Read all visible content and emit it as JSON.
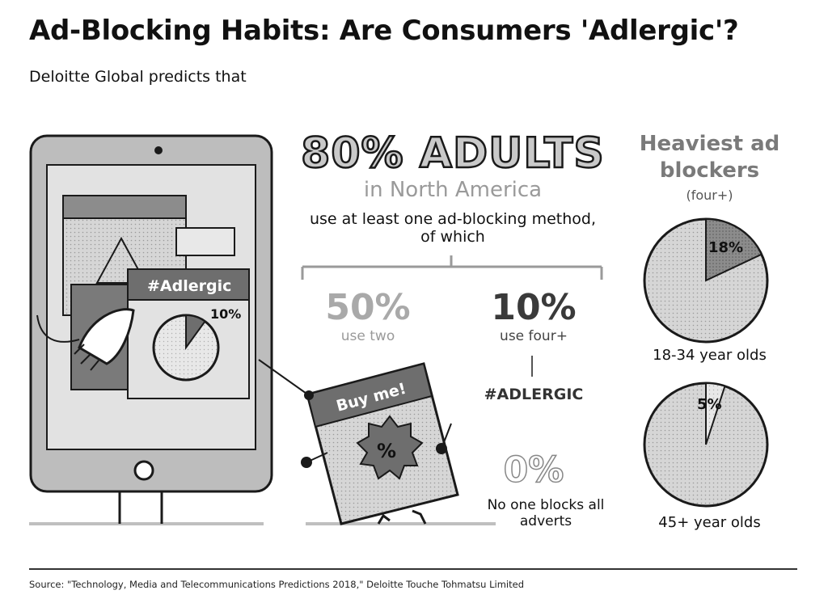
{
  "title": "Ad-Blocking Habits: Are Consumers 'Adlergic'?",
  "subtitle": "Deloitte Global predicts that",
  "headline": "80% ADULTS",
  "region": "in North America",
  "usage_text": "use at least one ad-blocking method, of which",
  "breakdown": [
    {
      "value": "50%",
      "label": "use two"
    },
    {
      "value": "10%",
      "label": "use four+"
    }
  ],
  "hashtag": "#ADLERGIC",
  "none": {
    "value": "0%",
    "label": "No one blocks all adverts"
  },
  "heaviest": {
    "title": "Heaviest ad blockers",
    "subtitle": "(four+)"
  },
  "chart_data": [
    {
      "type": "pie",
      "title": "18-34 year olds",
      "slices": [
        {
          "value": 18,
          "label": "18%"
        },
        {
          "value": 82,
          "label": ""
        }
      ]
    },
    {
      "type": "pie",
      "title": "45+ year olds",
      "slices": [
        {
          "value": 5,
          "label": "5%"
        },
        {
          "value": 95,
          "label": ""
        }
      ]
    },
    {
      "type": "pie",
      "title": "",
      "slices": [
        {
          "value": 10,
          "label": "10%"
        },
        {
          "value": 90,
          "label": ""
        }
      ]
    }
  ],
  "illustration": {
    "tablet_hashtag": "#Adlergic",
    "tablet_pct": "10%",
    "sign_text": "Buy me!",
    "badge_symbol": "%"
  },
  "colors": {
    "dark": "#1a1a1a",
    "mid": "#7d7d7d",
    "light": "#cfcfcf"
  },
  "source": "Source: \"Technology, Media and Telecommunications Predictions 2018,\" Deloitte Touche Tohmatsu Limited"
}
